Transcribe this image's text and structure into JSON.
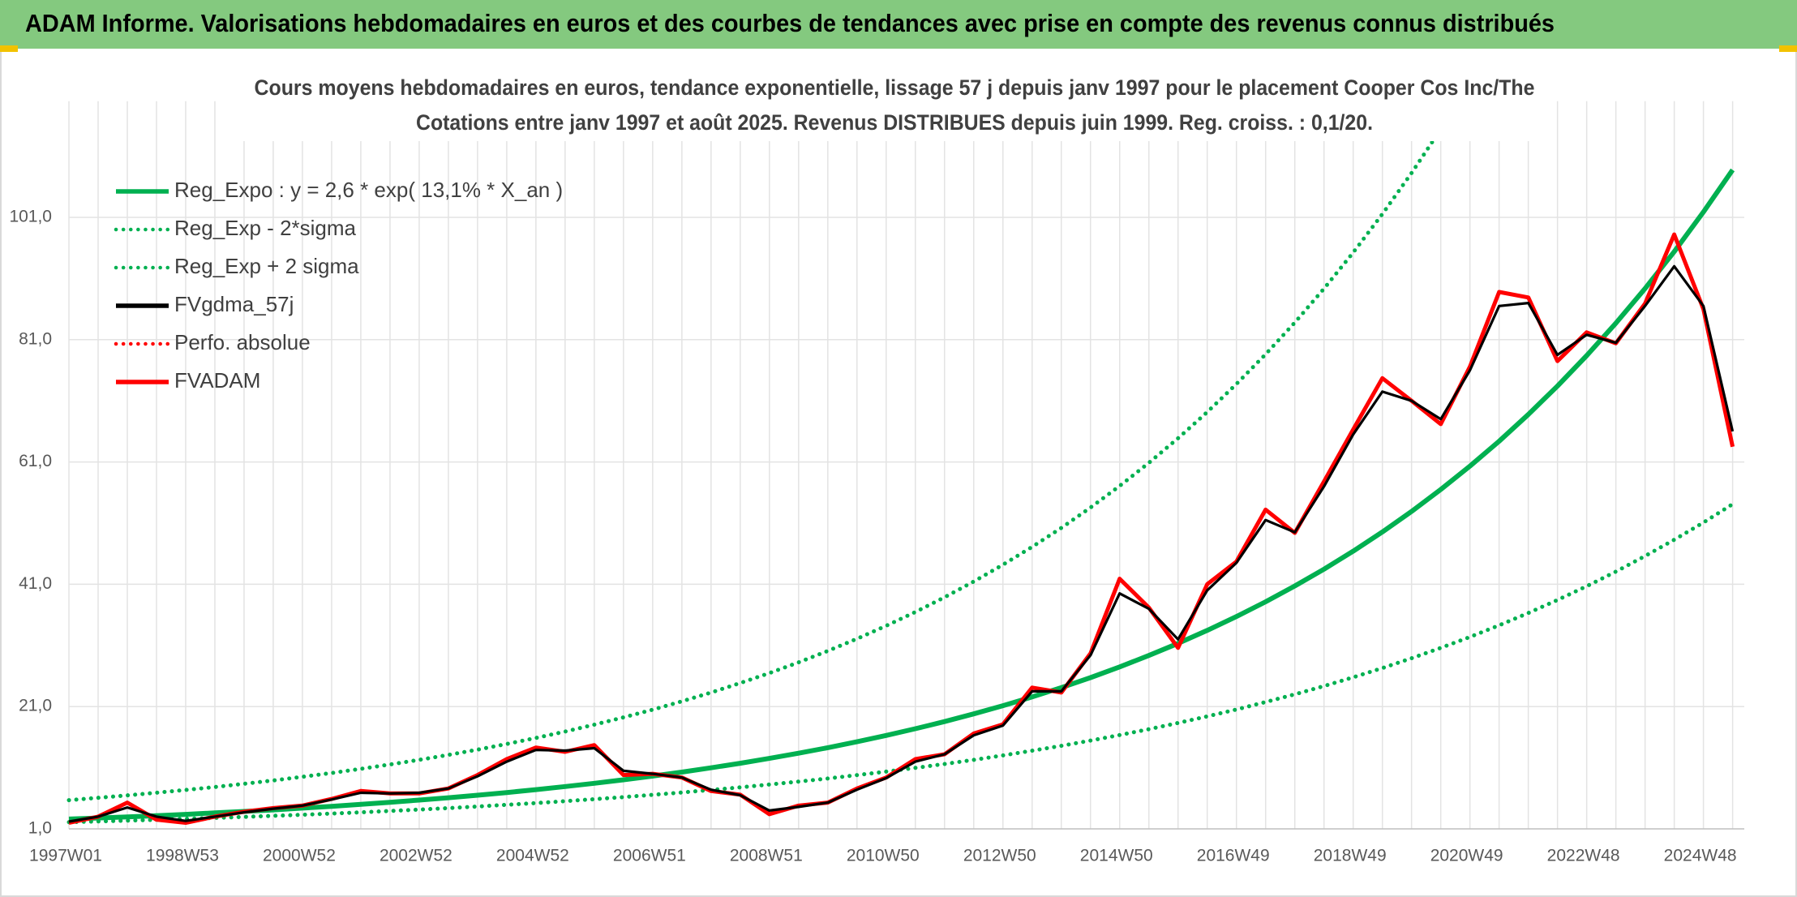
{
  "header": {
    "title": "ADAM Informe. Valorisations hebdomadaires en euros et des courbes de tendances avec prise en compte des revenus connus distribués"
  },
  "chart_data": {
    "type": "line",
    "title": "Cours moyens hebdomadaires en euros, tendance exponentielle, lissage 57 j depuis janv 1997 pour le placement Cooper Cos Inc/The",
    "subtitle": "Cotations entre janv 1997 et août 2025. Revenus DISTRIBUES depuis juin 1999. Reg. croiss. : 0,1/20.",
    "categories": [
      "1997W01",
      null,
      null,
      null,
      "1998W53",
      null,
      null,
      null,
      "2000W52",
      null,
      null,
      null,
      "2002W52",
      null,
      null,
      null,
      "2004W52",
      null,
      null,
      null,
      "2006W51",
      null,
      null,
      null,
      "2008W51",
      null,
      null,
      null,
      "2010W50",
      null,
      null,
      null,
      "2012W50",
      null,
      null,
      null,
      "2014W50",
      null,
      null,
      null,
      "2016W49",
      null,
      null,
      null,
      "2018W49",
      null,
      null,
      null,
      "2020W49",
      null,
      null,
      null,
      "2022W48",
      null,
      null,
      null,
      "2024W48",
      null
    ],
    "ylim": [
      1,
      120
    ],
    "yticks": [
      {
        "value": 1,
        "label": "1,0"
      },
      {
        "value": 21,
        "label": "21,0"
      },
      {
        "value": 41,
        "label": "41,0"
      },
      {
        "value": 61,
        "label": "61,0"
      },
      {
        "value": 81,
        "label": "81,0"
      },
      {
        "value": 101,
        "label": "101,0"
      }
    ],
    "grid": true,
    "legend": "top-left",
    "series": [
      {
        "name": "Reg_Expo : y = 2,6 * exp( 13,1% *  X_an )",
        "color": "#00b050",
        "line_style": "solid",
        "values": [
          2.6,
          2.78,
          2.96,
          3.16,
          3.38,
          3.61,
          3.85,
          4.11,
          4.39,
          4.69,
          5.0,
          5.35,
          5.71,
          6.09,
          6.51,
          6.94,
          7.42,
          7.92,
          8.46,
          9.03,
          9.64,
          10.29,
          10.99,
          11.73,
          12.52,
          13.37,
          14.28,
          15.24,
          16.28,
          17.38,
          18.55,
          19.81,
          21.15,
          22.58,
          24.11,
          25.74,
          27.48,
          29.35,
          31.33,
          33.46,
          35.72,
          38.14,
          40.72,
          43.47,
          46.41,
          49.56,
          52.91,
          56.5,
          60.32,
          64.4,
          68.77,
          73.42,
          78.39,
          83.69,
          89.36,
          95.39,
          101.87,
          108.76
        ]
      },
      {
        "name": "Reg_Exp - 2*sigma",
        "color": "#00b050",
        "line_style": "dotted",
        "values": [
          2.1,
          2.22,
          2.35,
          2.49,
          2.64,
          2.79,
          2.96,
          3.13,
          3.31,
          3.51,
          3.71,
          3.93,
          4.16,
          4.4,
          4.66,
          4.94,
          5.22,
          5.53,
          5.86,
          6.2,
          6.57,
          6.95,
          7.36,
          7.79,
          8.25,
          8.73,
          9.24,
          9.79,
          10.36,
          10.97,
          11.61,
          12.29,
          13.01,
          13.78,
          14.58,
          15.44,
          16.34,
          17.3,
          18.32,
          19.39,
          20.52,
          21.74,
          23.0,
          24.36,
          25.79,
          27.3,
          28.9,
          30.6,
          32.38,
          34.29,
          36.31,
          38.43,
          40.68,
          43.07,
          45.61,
          48.28,
          51.09,
          54.1
        ]
      },
      {
        "name": "Reg_Exp + 2 sigma",
        "color": "#00b050",
        "line_style": "dotted",
        "values": [
          5.7,
          6.08,
          6.48,
          6.91,
          7.36,
          7.85,
          8.37,
          8.92,
          9.51,
          10.14,
          10.81,
          11.53,
          12.29,
          13.1,
          13.96,
          14.89,
          15.87,
          16.92,
          18.04,
          19.23,
          20.5,
          21.86,
          23.3,
          24.84,
          26.48,
          28.23,
          30.1,
          32.09,
          34.21,
          36.47,
          38.88,
          41.45,
          44.19,
          47.11,
          50.22,
          53.54,
          57.08,
          60.85,
          64.87,
          69.16,
          73.74,
          78.61,
          83.8,
          89.34,
          95.25,
          101.54,
          108.25,
          115.41,
          123.03,
          null,
          null,
          null,
          null,
          null,
          null,
          null,
          null,
          null
        ]
      },
      {
        "name": "FVgdma_57j",
        "color": "#000000",
        "line_style": "solid",
        "values": [
          2.2,
          3,
          4.5,
          3,
          2.3,
          3,
          3.7,
          4.3,
          4.8,
          5.8,
          6.9,
          6.8,
          6.9,
          7.6,
          9.6,
          12,
          13.9,
          13.8,
          14.2,
          10.5,
          10,
          9.4,
          7.4,
          6.5,
          4,
          4.6,
          5.3,
          7.4,
          9.3,
          12,
          13.2,
          16.3,
          17.9,
          23.5,
          23.5,
          29.4,
          39.5,
          37,
          32,
          40,
          44.5,
          51.5,
          49.5,
          57,
          65.5,
          72.5,
          71,
          68,
          76,
          86.5,
          87,
          78.5,
          81.8,
          80.5,
          86.5,
          93,
          86.5,
          66
        ]
      },
      {
        "name": "Perfo. absolue",
        "color": "#ff0000",
        "line_style": "dotted",
        "values": [
          null,
          null,
          null,
          null,
          null,
          null,
          null,
          null,
          null,
          null,
          null,
          null,
          null,
          null,
          null,
          null,
          null,
          null,
          null,
          null,
          null,
          null,
          null,
          null,
          null,
          null,
          null,
          null,
          null,
          null,
          null,
          null,
          null,
          null,
          null,
          null,
          null,
          null,
          null,
          null,
          null,
          null,
          null,
          null,
          null,
          null,
          null,
          null,
          null,
          null,
          null,
          null,
          null,
          null,
          null,
          null,
          null,
          null
        ]
      },
      {
        "name": "FVADAM",
        "color": "#ff0000",
        "line_style": "solid",
        "values": [
          2,
          3,
          5.3,
          2.5,
          2,
          3,
          3.8,
          4.4,
          4.8,
          5.9,
          7.2,
          6.8,
          6.8,
          7.6,
          9.8,
          12.4,
          14.3,
          13.6,
          14.7,
          9.8,
          10,
          9.4,
          7.2,
          6.6,
          3.4,
          4.8,
          5.3,
          7.6,
          9.4,
          12.4,
          13.2,
          16.6,
          18.1,
          24.1,
          23.3,
          29.7,
          41.9,
          37.2,
          30.6,
          41,
          44.7,
          53.2,
          49.4,
          57.8,
          66.3,
          74.7,
          71,
          67.2,
          76.6,
          88.8,
          87.9,
          77.5,
          82.2,
          80.4,
          86.9,
          98.2,
          86,
          63.5
        ]
      }
    ]
  }
}
